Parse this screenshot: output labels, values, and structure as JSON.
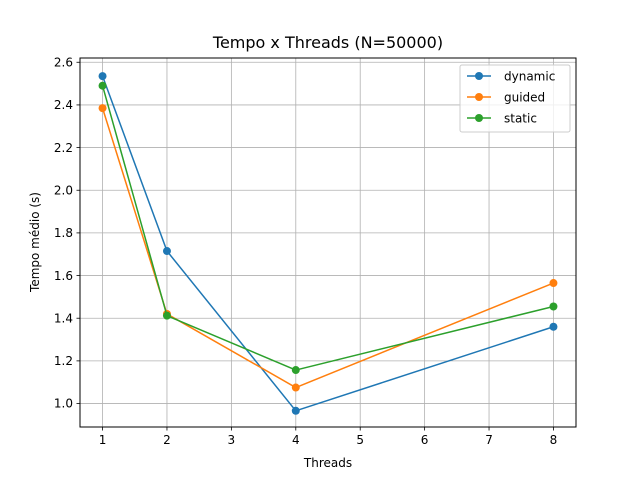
{
  "chart_data": {
    "type": "line",
    "title": "Tempo x Threads (N=50000)",
    "xlabel": "Threads",
    "ylabel": "Tempo médio (s)",
    "x": [
      1,
      2,
      4,
      8
    ],
    "x_ticks": [
      1,
      2,
      3,
      4,
      5,
      6,
      7,
      8
    ],
    "x_tick_labels": [
      "1",
      "2",
      "3",
      "4",
      "5",
      "6",
      "7",
      "8"
    ],
    "y_ticks": [
      1.0,
      1.2,
      1.4,
      1.6,
      1.8,
      2.0,
      2.2,
      2.4,
      2.6
    ],
    "y_tick_labels": [
      "1.0",
      "1.2",
      "1.4",
      "1.6",
      "1.8",
      "2.0",
      "2.2",
      "2.4",
      "2.6"
    ],
    "xlim": [
      0.65,
      8.35
    ],
    "ylim": [
      0.89,
      2.62
    ],
    "grid": true,
    "legend_position": "top-right",
    "marker": "circle",
    "series": [
      {
        "name": "dynamic",
        "color": "#1f77b4",
        "values": [
          2.535,
          1.715,
          0.966,
          1.36
        ]
      },
      {
        "name": "guided",
        "color": "#ff7f0e",
        "values": [
          2.385,
          1.42,
          1.075,
          1.565
        ]
      },
      {
        "name": "static",
        "color": "#2ca02c",
        "values": [
          2.49,
          1.412,
          1.157,
          1.455
        ]
      }
    ]
  }
}
